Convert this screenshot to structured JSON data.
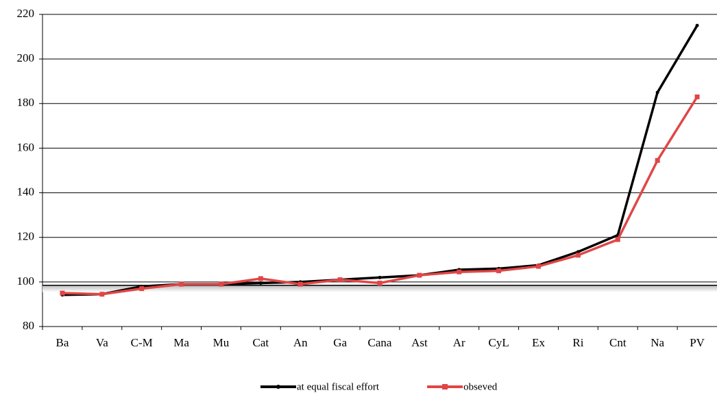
{
  "chart_data": {
    "type": "line",
    "categories": [
      "Ba",
      "Va",
      "C-M",
      "Ma",
      "Mu",
      "Cat",
      "An",
      "Ga",
      "Cana",
      "Ast",
      "Ar",
      "CyL",
      "Ex",
      "Ri",
      "Cnt",
      "Na",
      "PV"
    ],
    "series": [
      {
        "name": "at equal fiscal effort",
        "color": "#000000",
        "values": [
          94.2,
          94.5,
          98,
          99,
          99,
          99.5,
          100,
          101,
          102,
          103,
          105.5,
          106,
          107.5,
          113.5,
          121,
          185,
          215
        ]
      },
      {
        "name": "obseved",
        "color": "#e04646",
        "values": [
          95,
          94.5,
          97,
          99,
          99,
          101.5,
          99,
          101,
          99.5,
          103,
          104.5,
          105,
          107,
          112,
          119,
          154.5,
          183
        ]
      }
    ],
    "ylim": [
      80,
      220
    ],
    "yticks": [
      80,
      100,
      120,
      140,
      160,
      180,
      200,
      220
    ],
    "reference_line": 98.5,
    "grid": true
  }
}
